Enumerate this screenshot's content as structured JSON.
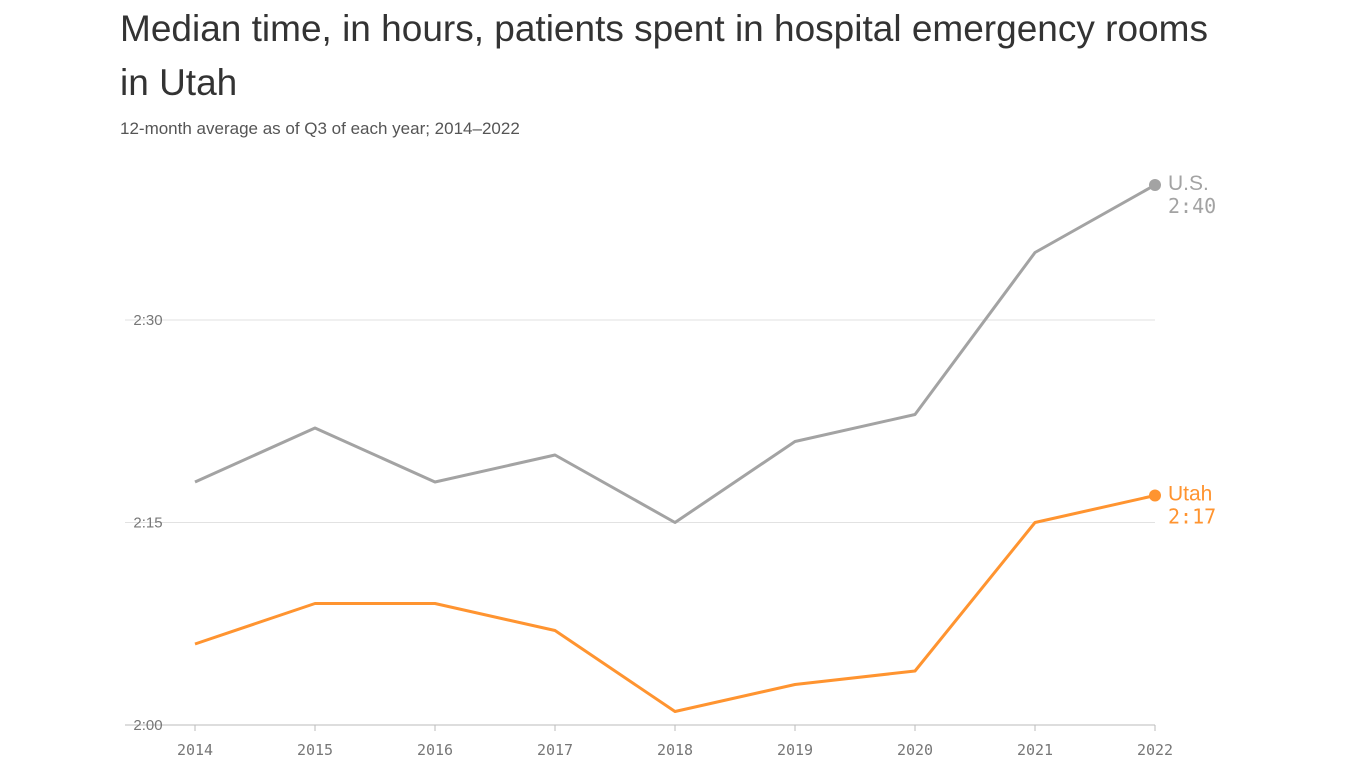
{
  "chart_data": {
    "type": "line",
    "title": "Median time, in hours, patients spent in hospital emergency rooms in Utah",
    "subtitle": "12-month average as of Q3 of each year; 2014–2022",
    "x": [
      "2014",
      "2015",
      "2016",
      "2017",
      "2018",
      "2019",
      "2020",
      "2021",
      "2022"
    ],
    "y_ticks": [
      "2:00",
      "2:15",
      "2:30"
    ],
    "ylim": [
      "2:00",
      "2:43"
    ],
    "grid": true,
    "series": [
      {
        "name": "U.S.",
        "color": "#a3a3a3",
        "end_label": "2:40",
        "values": [
          "2:18",
          "2:22",
          "2:18",
          "2:20",
          "2:15",
          "2:21",
          "2:23",
          "2:35",
          "2:40"
        ]
      },
      {
        "name": "Utah",
        "color": "#ff9430",
        "end_label": "2:17",
        "values": [
          "2:06",
          "2:09",
          "2:09",
          "2:07",
          "2:01",
          "2:03",
          "2:04",
          "2:15",
          "2:17"
        ]
      }
    ]
  }
}
